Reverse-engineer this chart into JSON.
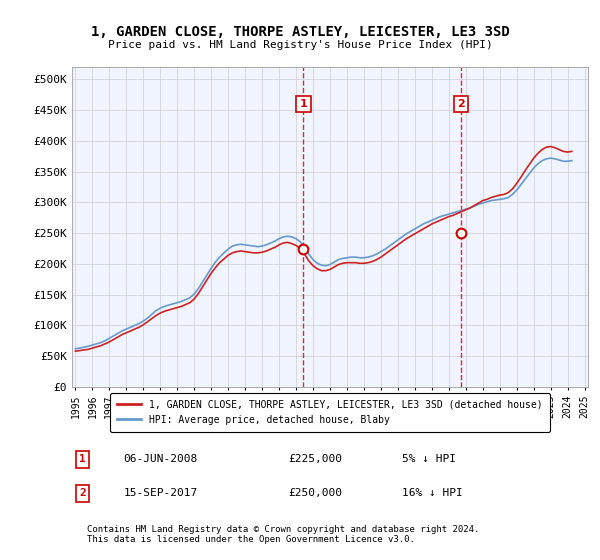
{
  "title": "1, GARDEN CLOSE, THORPE ASTLEY, LEICESTER, LE3 3SD",
  "subtitle": "Price paid vs. HM Land Registry's House Price Index (HPI)",
  "xlabel": "",
  "ylabel": "",
  "ylim": [
    0,
    520000
  ],
  "yticks": [
    0,
    50000,
    100000,
    150000,
    200000,
    250000,
    300000,
    350000,
    400000,
    450000,
    500000
  ],
  "ytick_labels": [
    "£0",
    "£50K",
    "£100K",
    "£150K",
    "£200K",
    "£250K",
    "£300K",
    "£350K",
    "£400K",
    "£450K",
    "£500K"
  ],
  "background_color": "#f0f4ff",
  "plot_bg_color": "#f0f4ff",
  "grid_color": "#cccccc",
  "hpi_color": "#6699cc",
  "price_color": "#cc2222",
  "vline_color": "#cc0000",
  "marker1_x": 2008.43,
  "marker1_y": 225000,
  "marker1_label": "1",
  "marker2_x": 2017.71,
  "marker2_y": 250000,
  "marker2_label": "2",
  "legend_line1": "1, GARDEN CLOSE, THORPE ASTLEY, LEICESTER, LE3 3SD (detached house)",
  "legend_line2": "HPI: Average price, detached house, Blaby",
  "table_row1_num": "1",
  "table_row1_date": "06-JUN-2008",
  "table_row1_price": "£225,000",
  "table_row1_hpi": "5% ↓ HPI",
  "table_row2_num": "2",
  "table_row2_date": "15-SEP-2017",
  "table_row2_price": "£250,000",
  "table_row2_hpi": "16% ↓ HPI",
  "footer": "Contains HM Land Registry data © Crown copyright and database right 2024.\nThis data is licensed under the Open Government Licence v3.0.",
  "hpi_x": [
    1995.0,
    1995.25,
    1995.5,
    1995.75,
    1996.0,
    1996.25,
    1996.5,
    1996.75,
    1997.0,
    1997.25,
    1997.5,
    1997.75,
    1998.0,
    1998.25,
    1998.5,
    1998.75,
    1999.0,
    1999.25,
    1999.5,
    1999.75,
    2000.0,
    2000.25,
    2000.5,
    2000.75,
    2001.0,
    2001.25,
    2001.5,
    2001.75,
    2002.0,
    2002.25,
    2002.5,
    2002.75,
    2003.0,
    2003.25,
    2003.5,
    2003.75,
    2004.0,
    2004.25,
    2004.5,
    2004.75,
    2005.0,
    2005.25,
    2005.5,
    2005.75,
    2006.0,
    2006.25,
    2006.5,
    2006.75,
    2007.0,
    2007.25,
    2007.5,
    2007.75,
    2008.0,
    2008.25,
    2008.5,
    2008.75,
    2009.0,
    2009.25,
    2009.5,
    2009.75,
    2010.0,
    2010.25,
    2010.5,
    2010.75,
    2011.0,
    2011.25,
    2011.5,
    2011.75,
    2012.0,
    2012.25,
    2012.5,
    2012.75,
    2013.0,
    2013.25,
    2013.5,
    2013.75,
    2014.0,
    2014.25,
    2014.5,
    2014.75,
    2015.0,
    2015.25,
    2015.5,
    2015.75,
    2016.0,
    2016.25,
    2016.5,
    2016.75,
    2017.0,
    2017.25,
    2017.5,
    2017.75,
    2018.0,
    2018.25,
    2018.5,
    2018.75,
    2019.0,
    2019.25,
    2019.5,
    2019.75,
    2020.0,
    2020.25,
    2020.5,
    2020.75,
    2021.0,
    2021.25,
    2021.5,
    2021.75,
    2022.0,
    2022.25,
    2022.5,
    2022.75,
    2023.0,
    2023.25,
    2023.5,
    2023.75,
    2024.0,
    2024.25
  ],
  "hpi_y": [
    62000,
    63000,
    64500,
    66000,
    68000,
    70000,
    72000,
    75000,
    79000,
    83000,
    87000,
    91000,
    94000,
    97000,
    100000,
    103000,
    107000,
    112000,
    118000,
    124000,
    128000,
    131000,
    133000,
    135000,
    137000,
    139000,
    142000,
    145000,
    151000,
    160000,
    171000,
    182000,
    193000,
    203000,
    211000,
    218000,
    224000,
    229000,
    231000,
    232000,
    231000,
    230000,
    229000,
    228000,
    229000,
    231000,
    234000,
    237000,
    241000,
    244000,
    245000,
    244000,
    241000,
    236000,
    227000,
    216000,
    207000,
    201000,
    198000,
    197000,
    199000,
    203000,
    207000,
    209000,
    210000,
    211000,
    211000,
    210000,
    210000,
    211000,
    213000,
    216000,
    220000,
    224000,
    229000,
    234000,
    239000,
    244000,
    249000,
    253000,
    257000,
    261000,
    265000,
    268000,
    271000,
    274000,
    277000,
    279000,
    281000,
    283000,
    285000,
    287000,
    289000,
    291000,
    294000,
    297000,
    299000,
    301000,
    303000,
    304000,
    305000,
    306000,
    308000,
    313000,
    320000,
    329000,
    338000,
    347000,
    356000,
    363000,
    368000,
    371000,
    372000,
    371000,
    369000,
    367000,
    367000,
    368000
  ],
  "price_x": [
    1995.0,
    1995.25,
    1995.5,
    1995.75,
    1996.0,
    1996.25,
    1996.5,
    1996.75,
    1997.0,
    1997.25,
    1997.5,
    1997.75,
    1998.0,
    1998.25,
    1998.5,
    1998.75,
    1999.0,
    1999.25,
    1999.5,
    1999.75,
    2000.0,
    2000.25,
    2000.5,
    2000.75,
    2001.0,
    2001.25,
    2001.5,
    2001.75,
    2002.0,
    2002.25,
    2002.5,
    2002.75,
    2003.0,
    2003.25,
    2003.5,
    2003.75,
    2004.0,
    2004.25,
    2004.5,
    2004.75,
    2005.0,
    2005.25,
    2005.5,
    2005.75,
    2006.0,
    2006.25,
    2006.5,
    2006.75,
    2007.0,
    2007.25,
    2007.5,
    2007.75,
    2008.0,
    2008.25,
    2008.5,
    2008.75,
    2009.0,
    2009.25,
    2009.5,
    2009.75,
    2010.0,
    2010.25,
    2010.5,
    2010.75,
    2011.0,
    2011.25,
    2011.5,
    2011.75,
    2012.0,
    2012.25,
    2012.5,
    2012.75,
    2013.0,
    2013.25,
    2013.5,
    2013.75,
    2014.0,
    2014.25,
    2014.5,
    2014.75,
    2015.0,
    2015.25,
    2015.5,
    2015.75,
    2016.0,
    2016.25,
    2016.5,
    2016.75,
    2017.0,
    2017.25,
    2017.5,
    2017.75,
    2018.0,
    2018.25,
    2018.5,
    2018.75,
    2019.0,
    2019.25,
    2019.5,
    2019.75,
    2020.0,
    2020.25,
    2020.5,
    2020.75,
    2021.0,
    2021.25,
    2021.5,
    2021.75,
    2022.0,
    2022.25,
    2022.5,
    2022.75,
    2023.0,
    2023.25,
    2023.5,
    2023.75,
    2024.0,
    2024.25
  ],
  "price_y": [
    58000,
    59000,
    60000,
    61000,
    63000,
    65000,
    67000,
    70000,
    73000,
    77000,
    81000,
    85000,
    88000,
    91000,
    94000,
    97000,
    101000,
    106000,
    111000,
    116000,
    120000,
    123000,
    125000,
    127000,
    129000,
    131000,
    134000,
    137000,
    143000,
    152000,
    163000,
    174000,
    185000,
    194000,
    202000,
    208000,
    214000,
    218000,
    220000,
    221000,
    220000,
    219000,
    218000,
    218000,
    219000,
    221000,
    224000,
    227000,
    231000,
    234000,
    235000,
    233000,
    230000,
    225000,
    216000,
    205000,
    197000,
    192000,
    189000,
    189000,
    191000,
    195000,
    199000,
    201000,
    202000,
    202000,
    202000,
    201000,
    201000,
    202000,
    204000,
    207000,
    211000,
    216000,
    221000,
    226000,
    231000,
    236000,
    241000,
    245000,
    249000,
    253000,
    257000,
    261000,
    265000,
    268000,
    271000,
    274000,
    277000,
    279000,
    282000,
    285000,
    288000,
    291000,
    295000,
    299000,
    303000,
    305000,
    308000,
    310000,
    312000,
    313000,
    316000,
    322000,
    331000,
    341000,
    352000,
    362000,
    372000,
    380000,
    386000,
    390000,
    391000,
    389000,
    386000,
    383000,
    382000,
    383000
  ],
  "xtick_years": [
    1995,
    1996,
    1997,
    1998,
    1999,
    2000,
    2001,
    2002,
    2003,
    2004,
    2005,
    2006,
    2007,
    2008,
    2009,
    2010,
    2011,
    2012,
    2013,
    2014,
    2015,
    2016,
    2017,
    2018,
    2019,
    2020,
    2021,
    2022,
    2023,
    2024,
    2025
  ]
}
